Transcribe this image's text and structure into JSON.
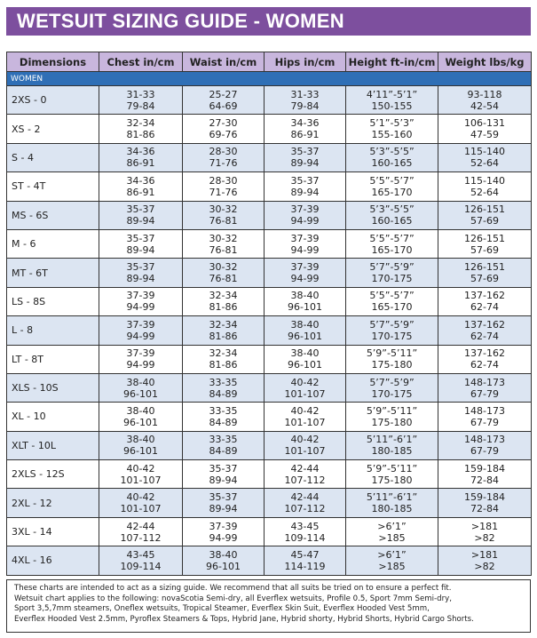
{
  "title": "WETSUIT SIZING GUIDE - WOMEN",
  "table": {
    "header": [
      "Dimensions",
      "Chest in/cm",
      "Waist in/cm",
      "Hips in/cm",
      "Height ft-in/cm",
      "Weight lbs/kg"
    ],
    "section": "WOMEN",
    "rows": [
      [
        "2XS - 0",
        [
          "31-33",
          "79-84"
        ],
        [
          "25-27",
          "64-69"
        ],
        [
          "31-33",
          "79-84"
        ],
        [
          "4’11”-5’1”",
          "150-155"
        ],
        [
          "93-118",
          "42-54"
        ]
      ],
      [
        "XS - 2",
        [
          "32-34",
          "81-86"
        ],
        [
          "27-30",
          "69-76"
        ],
        [
          "34-36",
          "86-91"
        ],
        [
          "5’1”-5’3”",
          "155-160"
        ],
        [
          "106-131",
          "47-59"
        ]
      ],
      [
        "S - 4",
        [
          "34-36",
          "86-91"
        ],
        [
          "28-30",
          "71-76"
        ],
        [
          "35-37",
          "89-94"
        ],
        [
          "5’3”-5’5”",
          "160-165"
        ],
        [
          "115-140",
          "52-64"
        ]
      ],
      [
        "ST - 4T",
        [
          "34-36",
          "86-91"
        ],
        [
          "28-30",
          "71-76"
        ],
        [
          "35-37",
          "89-94"
        ],
        [
          "5’5”-5’7”",
          "165-170"
        ],
        [
          "115-140",
          "52-64"
        ]
      ],
      [
        "MS - 6S",
        [
          "35-37",
          "89-94"
        ],
        [
          "30-32",
          "76-81"
        ],
        [
          "37-39",
          "94-99"
        ],
        [
          "5’3”-5’5”",
          "160-165"
        ],
        [
          "126-151",
          "57-69"
        ]
      ],
      [
        "M - 6",
        [
          "35-37",
          "89-94"
        ],
        [
          "30-32",
          "76-81"
        ],
        [
          "37-39",
          "94-99"
        ],
        [
          "5’5”-5’7”",
          "165-170"
        ],
        [
          "126-151",
          "57-69"
        ]
      ],
      [
        "MT - 6T",
        [
          "35-37",
          "89-94"
        ],
        [
          "30-32",
          "76-81"
        ],
        [
          "37-39",
          "94-99"
        ],
        [
          "5’7”-5’9”",
          "170-175"
        ],
        [
          "126-151",
          "57-69"
        ]
      ],
      [
        "LS - 8S",
        [
          "37-39",
          "94-99"
        ],
        [
          "32-34",
          "81-86"
        ],
        [
          "38-40",
          "96-101"
        ],
        [
          "5’5”-5’7”",
          "165-170"
        ],
        [
          "137-162",
          "62-74"
        ]
      ],
      [
        "L - 8",
        [
          "37-39",
          "94-99"
        ],
        [
          "32-34",
          "81-86"
        ],
        [
          "38-40",
          "96-101"
        ],
        [
          "5’7”-5’9”",
          "170-175"
        ],
        [
          "137-162",
          "62-74"
        ]
      ],
      [
        "LT - 8T",
        [
          "37-39",
          "94-99"
        ],
        [
          "32-34",
          "81-86"
        ],
        [
          "38-40",
          "96-101"
        ],
        [
          "5’9”-5’11”",
          "175-180"
        ],
        [
          "137-162",
          "62-74"
        ]
      ],
      [
        "XLS - 10S",
        [
          "38-40",
          "96-101"
        ],
        [
          "33-35",
          "84-89"
        ],
        [
          "40-42",
          "101-107"
        ],
        [
          "5’7”-5’9”",
          "170-175"
        ],
        [
          "148-173",
          "67-79"
        ]
      ],
      [
        "XL - 10",
        [
          "38-40",
          "96-101"
        ],
        [
          "33-35",
          "84-89"
        ],
        [
          "40-42",
          "101-107"
        ],
        [
          "5’9”-5’11”",
          "175-180"
        ],
        [
          "148-173",
          "67-79"
        ]
      ],
      [
        "XLT - 10L",
        [
          "38-40",
          "96-101"
        ],
        [
          "33-35",
          "84-89"
        ],
        [
          "40-42",
          "101-107"
        ],
        [
          "5’11”-6’1”",
          "180-185"
        ],
        [
          "148-173",
          "67-79"
        ]
      ],
      [
        "2XLS - 12S",
        [
          "40-42",
          "101-107"
        ],
        [
          "35-37",
          "89-94"
        ],
        [
          "42-44",
          "107-112"
        ],
        [
          "5’9”-5’11”",
          "175-180"
        ],
        [
          "159-184",
          "72-84"
        ]
      ],
      [
        "2XL - 12",
        [
          "40-42",
          "101-107"
        ],
        [
          "35-37",
          "89-94"
        ],
        [
          "42-44",
          "107-112"
        ],
        [
          "5’11”-6’1”",
          "180-185"
        ],
        [
          "159-184",
          "72-84"
        ]
      ],
      [
        "3XL - 14",
        [
          "42-44",
          "107-112"
        ],
        [
          "37-39",
          "94-99"
        ],
        [
          "43-45",
          "109-114"
        ],
        [
          ">6’1”",
          ">185"
        ],
        [
          ">181",
          ">82"
        ]
      ],
      [
        "4XL - 16",
        [
          "43-45",
          "109-114"
        ],
        [
          "38-40",
          "96-101"
        ],
        [
          "45-47",
          "114-119"
        ],
        [
          ">6’1”",
          ">185"
        ],
        [
          ">181",
          ">82"
        ]
      ]
    ]
  },
  "footnote": [
    "These charts are intended to act as a sizing guide. We recommend that all suits be tried on to ensure a perfect fit.",
    "Wetsuit chart applies to the following: novaScotia Semi-dry, all Everflex wetsuits, Profile 0.5, Sport 7mm Semi-dry,",
    "Sport 3,5,7mm steamers, Oneflex wetsuits, Tropical Steamer, Everflex Skin Suit, Everflex Hooded Vest 5mm,",
    "Everflex Hooded Vest  2.5mm, Pyroflex Steamers & Tops, Hybrid Jane, Hybrid shorty, Hybrid Shorts, Hybrid Cargo Shorts."
  ]
}
